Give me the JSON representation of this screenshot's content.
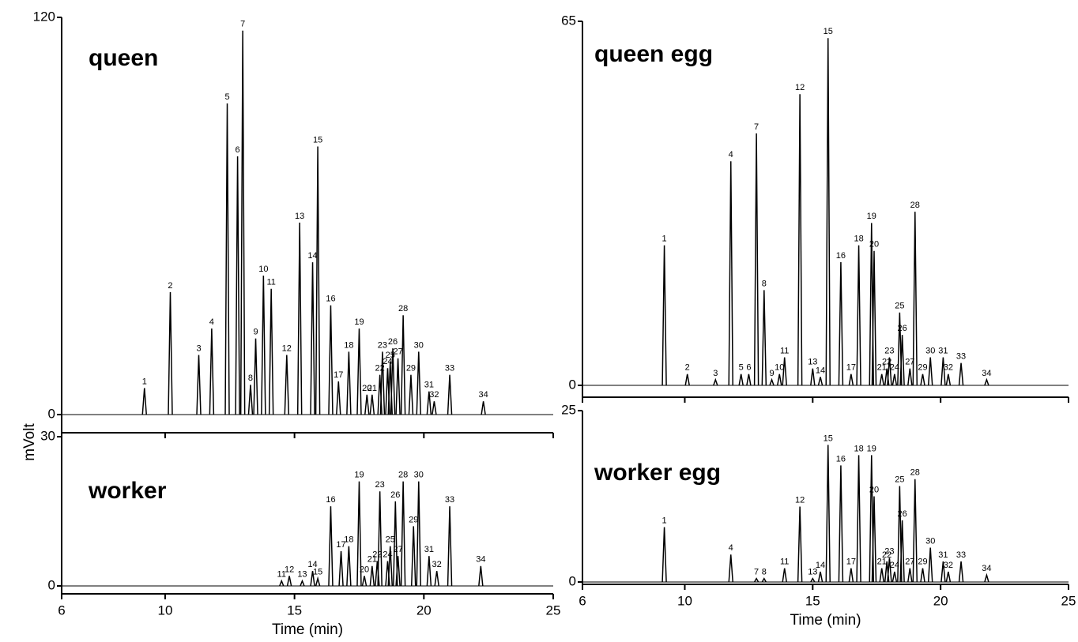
{
  "ylabel": "mVolt",
  "chart_data": [
    {
      "type": "line",
      "title": "queen",
      "color": "#000000",
      "xlim": [
        6,
        25
      ],
      "xticks": [
        6,
        10,
        15,
        20,
        25
      ],
      "ylim": [
        0,
        120
      ],
      "yticks": [
        0,
        120
      ],
      "peak_labels": [
        "1",
        "2",
        "3",
        "4",
        "5",
        "6",
        "7",
        "8",
        "9",
        "10",
        "11",
        "12",
        "13",
        "14",
        "15",
        "16",
        "17",
        "18",
        "19",
        "20",
        "21",
        "22",
        "23",
        "24",
        "25",
        "26",
        "27",
        "28",
        "29",
        "30",
        "31",
        "32",
        "33",
        "34"
      ],
      "x": [
        9.2,
        10.2,
        11.3,
        11.8,
        12.4,
        12.8,
        13.0,
        13.3,
        13.5,
        13.8,
        14.1,
        14.7,
        15.2,
        15.7,
        15.9,
        16.4,
        16.7,
        17.1,
        17.5,
        17.8,
        18.0,
        18.3,
        18.4,
        18.6,
        18.7,
        18.8,
        19.0,
        19.2,
        19.5,
        19.8,
        20.2,
        20.4,
        21.0,
        22.3
      ],
      "values": [
        8,
        37,
        18,
        26,
        94,
        78,
        116,
        9,
        23,
        42,
        38,
        18,
        58,
        46,
        81,
        33,
        10,
        19,
        26,
        6,
        6,
        12,
        19,
        14,
        16,
        20,
        17,
        30,
        12,
        19,
        7,
        4,
        12,
        4
      ]
    },
    {
      "type": "line",
      "title": "worker",
      "xlabel": "Time (min)",
      "color": "#000000",
      "xlim": [
        6,
        25
      ],
      "xticks": [
        6,
        10,
        15,
        20,
        25
      ],
      "ylim": [
        0,
        30
      ],
      "yticks": [
        0,
        30
      ],
      "peak_labels": [
        "11",
        "12",
        "13",
        "14",
        "15",
        "16",
        "17",
        "18",
        "19",
        "20",
        "21",
        "22",
        "23",
        "24",
        "25",
        "26",
        "27",
        "28",
        "29",
        "30",
        "31",
        "32",
        "33",
        "34"
      ],
      "x": [
        14.5,
        14.8,
        15.3,
        15.7,
        15.9,
        16.4,
        16.8,
        17.1,
        17.5,
        17.7,
        18.0,
        18.2,
        18.3,
        18.6,
        18.7,
        18.9,
        19.0,
        19.2,
        19.6,
        19.8,
        20.2,
        20.5,
        21.0,
        22.2
      ],
      "values": [
        1,
        2,
        1,
        3,
        1.5,
        16,
        7,
        8,
        21,
        2,
        4,
        5,
        19,
        5,
        8,
        17,
        6,
        21,
        12,
        21,
        6,
        3,
        16,
        4
      ]
    },
    {
      "type": "line",
      "title": "queen egg",
      "color": "#000000",
      "xlim": [
        6,
        25
      ],
      "xticks": [
        6,
        10,
        15,
        20,
        25
      ],
      "ylim": [
        0,
        65
      ],
      "yticks": [
        0,
        65
      ],
      "peak_labels": [
        "1",
        "2",
        "3",
        "4",
        "5",
        "6",
        "7",
        "8",
        "9",
        "10",
        "11",
        "12",
        "13",
        "14",
        "15",
        "16",
        "17",
        "18",
        "19",
        "20",
        "21",
        "22",
        "23",
        "24",
        "25",
        "26",
        "27",
        "28",
        "29",
        "30",
        "31",
        "32",
        "33",
        "34"
      ],
      "x": [
        9.2,
        10.1,
        11.2,
        11.8,
        12.2,
        12.5,
        12.8,
        13.1,
        13.4,
        13.7,
        13.9,
        14.5,
        15.0,
        15.3,
        15.6,
        16.1,
        16.5,
        16.8,
        17.3,
        17.4,
        17.7,
        17.9,
        18.0,
        18.2,
        18.4,
        18.5,
        18.8,
        19.0,
        19.3,
        19.6,
        20.1,
        20.3,
        20.8,
        21.8
      ],
      "values": [
        25,
        2,
        1,
        40,
        2,
        2,
        45,
        17,
        1,
        2,
        5,
        52,
        3,
        1.5,
        62,
        22,
        2,
        25,
        29,
        24,
        2,
        3,
        5,
        2,
        13,
        9,
        3,
        31,
        2,
        5,
        5,
        2,
        4,
        1
      ]
    },
    {
      "type": "line",
      "title": "worker egg",
      "xlabel": "Time (min)",
      "color": "#000000",
      "xlim": [
        6,
        25
      ],
      "xticks": [
        6,
        10,
        15,
        20,
        25
      ],
      "ylim": [
        0,
        25
      ],
      "yticks": [
        0,
        25
      ],
      "peak_labels": [
        "1",
        "4",
        "7",
        "8",
        "11",
        "12",
        "13",
        "14",
        "15",
        "16",
        "17",
        "18",
        "19",
        "20",
        "21",
        "22",
        "23",
        "24",
        "25",
        "26",
        "27",
        "28",
        "29",
        "30",
        "31",
        "32",
        "33",
        "34"
      ],
      "x": [
        9.2,
        11.8,
        12.8,
        13.1,
        13.9,
        14.5,
        15.0,
        15.3,
        15.6,
        16.1,
        16.5,
        16.8,
        17.3,
        17.4,
        17.7,
        17.9,
        18.0,
        18.2,
        18.4,
        18.5,
        18.8,
        19.0,
        19.3,
        19.6,
        20.1,
        20.3,
        20.8,
        21.8
      ],
      "values": [
        8,
        4,
        0.5,
        0.5,
        2,
        11,
        0.5,
        1.5,
        20,
        17,
        2,
        18.5,
        18.5,
        12.5,
        2,
        3,
        3.5,
        1.5,
        14,
        9,
        2,
        15,
        2,
        5,
        3,
        1.5,
        3,
        1
      ]
    }
  ]
}
